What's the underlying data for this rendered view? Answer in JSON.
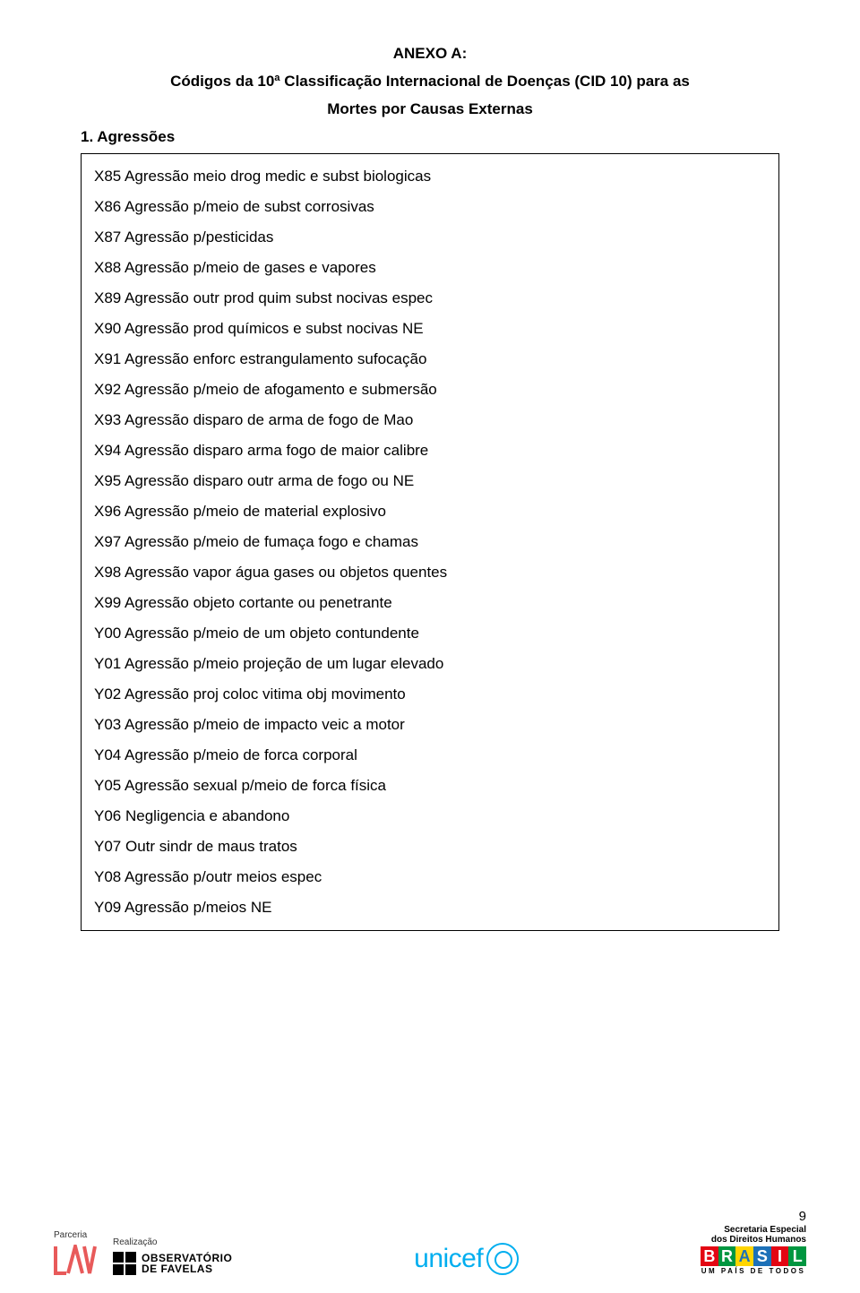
{
  "annex": {
    "title": "ANEXO A:",
    "subtitle_line1": "Códigos da 10ª Classificação Internacional de Doenças (CID 10) para as",
    "subtitle_line2": "Mortes por Causas Externas"
  },
  "section": {
    "title": "1. Agressões"
  },
  "codes": [
    "X85 Agressão meio drog medic e subst biologicas",
    "X86 Agressão p/meio de subst corrosivas",
    "X87 Agressão p/pesticidas",
    "X88 Agressão p/meio de gases e vapores",
    "X89 Agressão outr prod quim subst nocivas espec",
    "X90 Agressão prod químicos e subst nocivas NE",
    "X91 Agressão enforc estrangulamento sufocação",
    "X92 Agressão p/meio de afogamento e submersão",
    "X93 Agressão disparo de arma de fogo de Mao",
    "X94 Agressão disparo arma fogo de maior calibre",
    "X95 Agressão disparo outr arma de fogo ou NE",
    "X96 Agressão p/meio de material explosivo",
    "X97 Agressão p/meio de fumaça fogo e chamas",
    "X98 Agressão vapor água gases ou objetos quentes",
    "X99 Agressão objeto cortante ou penetrante",
    "Y00 Agressão p/meio de um objeto contundente",
    "Y01 Agressão p/meio projeção de um lugar elevado",
    "Y02 Agressão proj coloc vitima obj movimento",
    "Y03 Agressão p/meio de impacto veic a motor",
    "Y04 Agressão p/meio de forca corporal",
    "Y05 Agressão sexual p/meio de forca física",
    "Y06 Negligencia e abandono",
    "Y07 Outr sindr de maus tratos",
    "Y08 Agressão p/outr meios espec",
    "Y09 Agressão p/meios NE"
  ],
  "footer": {
    "parceria_label": "Parceria",
    "realizacao_label": "Realização",
    "favelas_line1": "OBSERVATÓRIO",
    "favelas_line2": "DE FAVELAS",
    "unicef_text": "unicef",
    "sedh_line1": "Secretaria Especial",
    "sedh_line2": "dos Direitos Humanos",
    "brasil_letters": [
      "B",
      "R",
      "A",
      "S",
      "I",
      "L"
    ],
    "brasil_colors": [
      "#e30613",
      "#009640",
      "#ffd500",
      "#1d71b8",
      "#e30613",
      "#009640"
    ],
    "brasil_tag": "UM PAÍS DE TODOS",
    "page_number": "9",
    "lav_color": "#e85a5a"
  }
}
